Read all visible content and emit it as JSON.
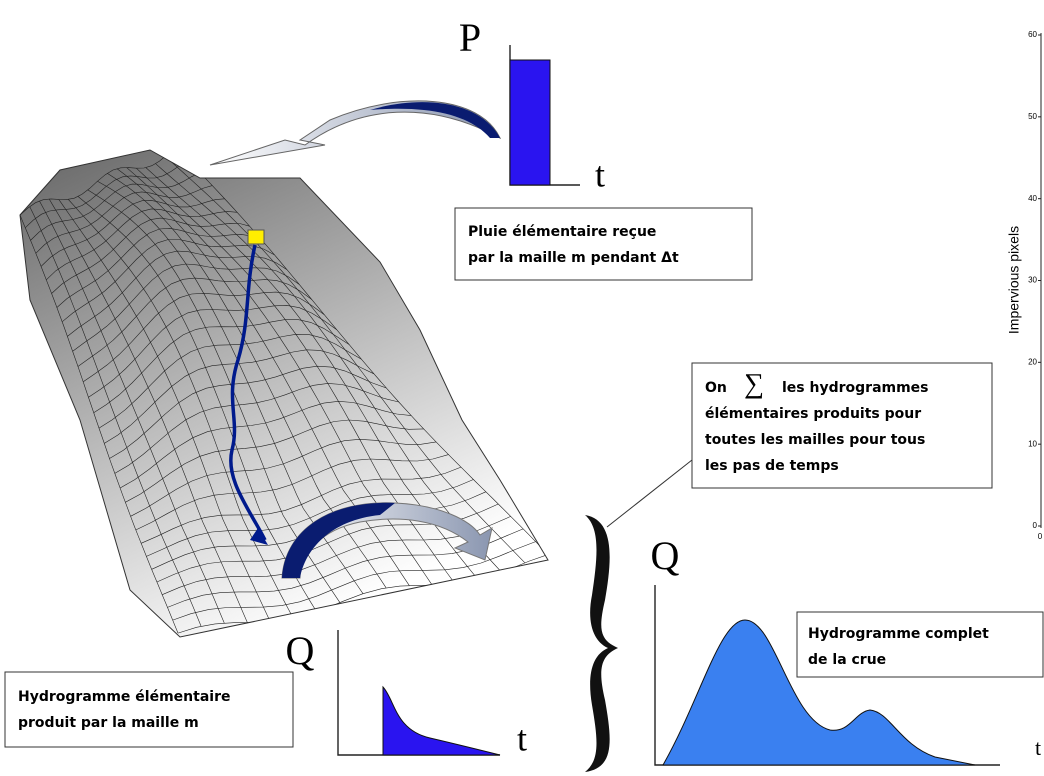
{
  "rain": {
    "axis_label": "P",
    "time_label": "t"
  },
  "rain_note": {
    "lines": [
      "Pluie élémentaire reçue",
      "par la maille m pendant Δt"
    ]
  },
  "sum_note": {
    "lines": [
      "On",
      "∑",
      "les hydrogrammes",
      "élémentaires produits pour",
      "toutes les mailles pour tous",
      "les pas de temps"
    ]
  },
  "unit_hydrograph": {
    "axis_label": "Q",
    "time_label": "t",
    "note": [
      "Hydrogramme élémentaire",
      "produit par la maille m"
    ]
  },
  "flood_hydrograph": {
    "axis_label": "Q",
    "time_label": "t",
    "note": [
      "Hydrogramme complet",
      "de la crue"
    ]
  },
  "side_axis": {
    "label": "Impervious pixels",
    "ticks": [
      "60",
      "50",
      "40",
      "30",
      "20",
      "10",
      "0"
    ],
    "x_tick": "0"
  }
}
